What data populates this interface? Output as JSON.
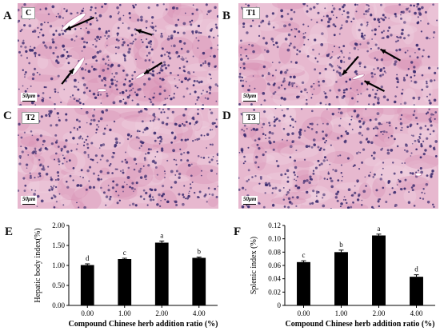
{
  "panels": [
    {
      "letter": "A",
      "label": "C",
      "scale": "50μm"
    },
    {
      "letter": "B",
      "label": "T1",
      "scale": "50μm"
    },
    {
      "letter": "C",
      "label": "T2",
      "scale": "50μm"
    },
    {
      "letter": "D",
      "label": "T3",
      "scale": "50μm"
    }
  ],
  "colors": {
    "tissue_light": "#e7b8cf",
    "tissue_mid": "#d68bb3",
    "nucleus": "#3a2a6e",
    "bar": "#000000"
  },
  "chart_data": [
    {
      "type": "bar",
      "panel": "E",
      "categories": [
        "0.00",
        "1.00",
        "2.00",
        "4.00"
      ],
      "values": [
        1.01,
        1.16,
        1.57,
        1.19
      ],
      "errors": [
        0.03,
        0.02,
        0.04,
        0.02
      ],
      "sig_letters": [
        "d",
        "c",
        "a",
        "b"
      ],
      "yticks": [
        "0.00",
        "0.50",
        "1.00",
        "1.50",
        "2.00"
      ],
      "ylim": [
        0,
        2.0
      ],
      "xlabel": "Compound Chinese herb addition ratio (%)",
      "ylabel": "Hepatic body index(%)"
    },
    {
      "type": "bar",
      "panel": "F",
      "categories": [
        "0.00",
        "1.00",
        "2.00",
        "4.00"
      ],
      "values": [
        0.065,
        0.08,
        0.105,
        0.043
      ],
      "errors": [
        0.002,
        0.003,
        0.002,
        0.003
      ],
      "sig_letters": [
        "c",
        "b",
        "a",
        "d"
      ],
      "yticks": [
        "0",
        "0.02",
        "0.04",
        "0.06",
        "0.08",
        "0.10",
        "0.12"
      ],
      "ylim": [
        0,
        0.12
      ],
      "xlabel": "Compound Chinese herb addition ratio (%)",
      "ylabel": "Splenic index (%)"
    }
  ]
}
